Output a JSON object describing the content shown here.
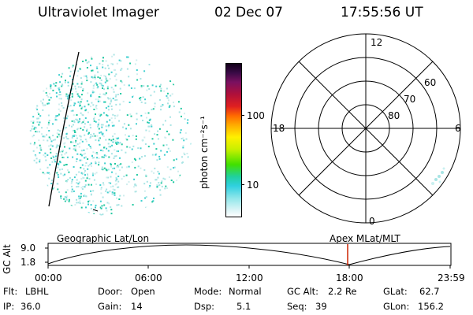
{
  "header": {
    "title": "Ultraviolet Imager",
    "date": "02 Dec 07",
    "time": "17:55:56 UT"
  },
  "colorbar": {
    "unit_label": "photon cm⁻²s⁻¹",
    "ticks": [
      "100",
      "10"
    ]
  },
  "polar_plot": {
    "mlt_labels": {
      "top": "12",
      "left": "18",
      "right": "6",
      "bottom": "0"
    },
    "lat_labels": [
      "60",
      "70",
      "80"
    ]
  },
  "orbit_panel": {
    "y_label": "GC Alt",
    "y_ticks": [
      "9.0",
      "1.8"
    ],
    "left_label": "Geographic Lat/Lon",
    "right_label": "Apex MLat/MLT",
    "time_ticks": [
      "00:00",
      "06:00",
      "12:00",
      "18:00",
      "23:59"
    ],
    "current_time_marker": "17:56"
  },
  "status": {
    "row1": {
      "flt_label": "Flt:",
      "flt_value": "LBHL",
      "door_label": "Door:",
      "door_value": "Open",
      "mode_label": "Mode:",
      "mode_value": "Normal",
      "gcalt_label": "GC Alt:",
      "gcalt_value": "2.2 Re",
      "glat_label": "GLat:",
      "glat_value": "62.7"
    },
    "row2": {
      "ip_label": "IP:",
      "ip_value": "36.0",
      "gain_label": "Gain:",
      "gain_value": "14",
      "dsp_label": "Dsp:",
      "dsp_value": "5.1",
      "seq_label": "Seq:",
      "seq_value": "39",
      "glon_label": "GLon:",
      "glon_value": "156.2"
    }
  },
  "colors": {
    "aurora_light": "#a8e4e4",
    "aurora_mid": "#40d0d0",
    "aurora_bright": "#20c8a0",
    "marker": "#cc2200"
  }
}
